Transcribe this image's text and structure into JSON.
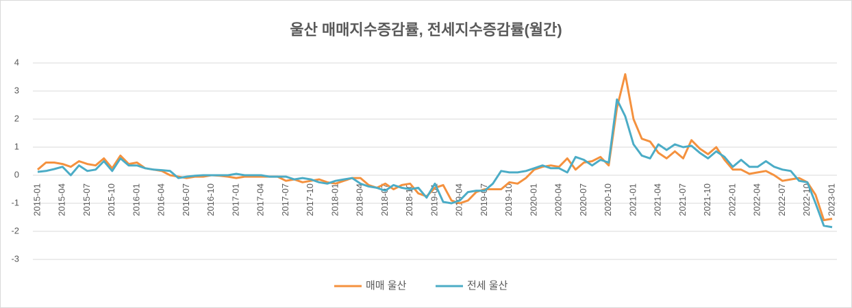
{
  "chart_data": {
    "type": "line",
    "title": "울산 매매지수증감률, 전세지수증감률(월간)",
    "categories": [
      "2015-01",
      null,
      null,
      "2015-04",
      null,
      null,
      "2015-07",
      null,
      null,
      "2015-10",
      null,
      null,
      "2016-01",
      null,
      null,
      "2016-04",
      null,
      null,
      "2016-07",
      null,
      null,
      "2016-10",
      null,
      null,
      "2017-01",
      null,
      null,
      "2017-04",
      null,
      null,
      "2017-07",
      null,
      null,
      "2017-10",
      null,
      null,
      "2018-01",
      null,
      null,
      "2018-04",
      null,
      null,
      "2018-07",
      null,
      null,
      "2018-10",
      null,
      null,
      "2019-01",
      null,
      null,
      "2019-04",
      null,
      null,
      "2019-07",
      null,
      null,
      "2019-10",
      null,
      null,
      "2020-01",
      null,
      null,
      "2020-04",
      null,
      null,
      "2020-07",
      null,
      null,
      "2020-10",
      null,
      null,
      "2021-01",
      null,
      null,
      "2021-04",
      null,
      null,
      "2021-07",
      null,
      null,
      "2021-10",
      null,
      null,
      "2022-01",
      null,
      null,
      "2022-04",
      null,
      null,
      "2022-07",
      null,
      null,
      "2022-10",
      null,
      null,
      "2023-01"
    ],
    "series": [
      {
        "name": "매매 울산",
        "color": "#f4913e",
        "values": [
          0.2,
          0.45,
          0.45,
          0.4,
          0.3,
          0.5,
          0.4,
          0.35,
          0.6,
          0.25,
          0.7,
          0.4,
          0.45,
          0.25,
          0.2,
          0.15,
          0.0,
          -0.05,
          -0.1,
          -0.05,
          -0.05,
          0.0,
          -0.02,
          -0.05,
          -0.1,
          -0.05,
          -0.05,
          -0.05,
          -0.05,
          -0.05,
          -0.2,
          -0.15,
          -0.25,
          -0.2,
          -0.15,
          -0.25,
          -0.3,
          -0.2,
          -0.1,
          -0.1,
          -0.35,
          -0.45,
          -0.3,
          -0.5,
          -0.35,
          -0.3,
          -0.65,
          -0.75,
          -0.45,
          -0.35,
          -0.9,
          -1.0,
          -0.9,
          -0.6,
          -0.5,
          -0.5,
          -0.5,
          -0.25,
          -0.3,
          -0.1,
          0.2,
          0.3,
          0.35,
          0.3,
          0.6,
          0.2,
          0.45,
          0.5,
          0.65,
          0.35,
          2.4,
          3.6,
          2.0,
          1.3,
          1.2,
          0.8,
          0.6,
          0.85,
          0.6,
          1.25,
          0.95,
          0.75,
          1.0,
          0.55,
          0.2,
          0.2,
          0.05,
          0.1,
          0.15,
          0.0,
          -0.2,
          -0.15,
          -0.1,
          -0.25,
          -0.7,
          -1.6,
          -1.55
        ]
      },
      {
        "name": "전세 울산",
        "color": "#4bacc6",
        "values": [
          0.12,
          0.15,
          0.22,
          0.3,
          0.0,
          0.35,
          0.15,
          0.2,
          0.5,
          0.15,
          0.6,
          0.35,
          0.35,
          0.25,
          0.2,
          0.18,
          0.15,
          -0.1,
          -0.05,
          -0.02,
          0.0,
          0.0,
          0.0,
          0.0,
          0.05,
          0.0,
          0.0,
          0.0,
          -0.05,
          -0.05,
          -0.05,
          -0.15,
          -0.1,
          -0.15,
          -0.25,
          -0.3,
          -0.2,
          -0.15,
          -0.1,
          -0.3,
          -0.4,
          -0.45,
          -0.55,
          -0.35,
          -0.45,
          -0.5,
          -0.45,
          -0.8,
          -0.3,
          -0.95,
          -1.0,
          -0.9,
          -0.6,
          -0.55,
          -0.55,
          -0.3,
          0.15,
          0.1,
          0.1,
          0.15,
          0.25,
          0.35,
          0.25,
          0.25,
          0.1,
          0.65,
          0.55,
          0.35,
          0.55,
          0.45,
          2.7,
          2.1,
          1.1,
          0.7,
          0.6,
          1.1,
          0.9,
          1.1,
          1.0,
          1.05,
          0.8,
          0.6,
          0.85,
          0.65,
          0.3,
          0.55,
          0.3,
          0.3,
          0.5,
          0.3,
          0.2,
          0.15,
          -0.2,
          -0.25,
          -1.0,
          -1.8,
          -1.85
        ]
      }
    ],
    "ylim": [
      -3,
      4
    ],
    "yticks": [
      -3,
      -2,
      -1,
      0,
      1,
      2,
      3,
      4
    ],
    "grid": true,
    "legend": "bottom"
  }
}
